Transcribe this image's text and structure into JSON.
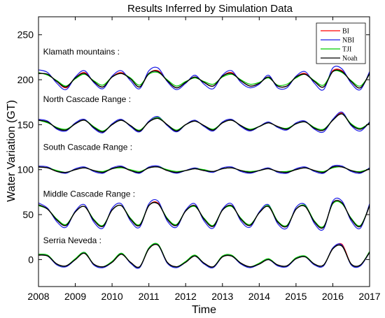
{
  "chart_data": {
    "type": "line",
    "title": "Results Inferred by Simulation Data",
    "xlabel": "Time",
    "ylabel": "Water Variation (GT)",
    "xlim": [
      2008,
      2017
    ],
    "ylim": [
      -30,
      270
    ],
    "xticks": [
      2008,
      2009,
      2010,
      2011,
      2012,
      2013,
      2014,
      2015,
      2016,
      2017
    ],
    "yticks": [
      0,
      50,
      100,
      150,
      200,
      250
    ],
    "grid": false,
    "legend_position": "top-right",
    "legend": [
      {
        "label": "BI",
        "color": "#ff0000"
      },
      {
        "label": "NBI",
        "color": "#1a1ae6"
      },
      {
        "label": "TJI",
        "color": "#00cc00"
      },
      {
        "label": "Noah",
        "color": "#000000"
      }
    ],
    "annotations": [
      {
        "text": "Klamath mountains :",
        "x": 2008.05,
        "y": 228
      },
      {
        "text": "North Cascade Range :",
        "x": 2008.05,
        "y": 175
      },
      {
        "text": "South Cascade Range :",
        "x": 2008.05,
        "y": 122
      },
      {
        "text": "Middle Cascade Range :",
        "x": 2008.05,
        "y": 70
      },
      {
        "text": "Serria Neveda :",
        "x": 2008.05,
        "y": 18
      }
    ],
    "x": [
      2008.0,
      2008.25,
      2008.5,
      2008.75,
      2009.0,
      2009.25,
      2009.5,
      2009.75,
      2010.0,
      2010.25,
      2010.5,
      2010.75,
      2011.0,
      2011.25,
      2011.5,
      2011.75,
      2012.0,
      2012.25,
      2012.5,
      2012.75,
      2013.0,
      2013.25,
      2013.5,
      2013.75,
      2014.0,
      2014.25,
      2014.5,
      2014.75,
      2015.0,
      2015.25,
      2015.5,
      2015.75,
      2016.0,
      2016.25,
      2016.5,
      2016.75,
      2017.0
    ],
    "regions": [
      {
        "name": "Klamath mountains",
        "series": [
          {
            "name": "BI",
            "values": [
              207,
              206,
              198,
              191,
              202,
              208,
              198,
              192,
              203,
              208,
              201,
              192,
              207,
              210,
              199,
              191,
              197,
              203,
              197,
              193,
              204,
              208,
              199,
              193,
              196,
              203,
              193,
              193,
              203,
              207,
              198,
              192,
              210,
              210,
              198,
              191,
              207
            ]
          },
          {
            "name": "NBI",
            "values": [
              211,
              208,
              196,
              189,
              203,
              210,
              197,
              190,
              204,
              210,
              199,
              190,
              210,
              213,
              198,
              189,
              196,
              205,
              195,
              190,
              205,
              210,
              197,
              191,
              195,
              205,
              191,
              191,
              204,
              209,
              196,
              189,
              213,
              212,
              196,
              189,
              209
            ]
          },
          {
            "name": "TJI",
            "values": [
              208,
              205,
              199,
              193,
              201,
              206,
              199,
              194,
              203,
              207,
              202,
              194,
              206,
              208,
              200,
              193,
              198,
              202,
              198,
              195,
              203,
              206,
              200,
              195,
              197,
              202,
              194,
              195,
              202,
              206,
              199,
              194,
              209,
              208,
              199,
              193,
              206
            ]
          },
          {
            "name": "Noah",
            "values": [
              207,
              206,
              198,
              192,
              202,
              207,
              198,
              192,
              203,
              207,
              201,
              192,
              207,
              209,
              199,
              191,
              197,
              203,
              197,
              193,
              204,
              207,
              199,
              193,
              196,
              203,
              193,
              193,
              203,
              206,
              198,
              192,
              209,
              209,
              198,
              191,
              207
            ]
          }
        ]
      },
      {
        "name": "North Cascade Range",
        "series": [
          {
            "name": "BI",
            "values": [
              155,
              153,
              146,
              144,
              151,
              155,
              147,
              142,
              150,
              155,
              149,
              143,
              153,
              158,
              150,
              143,
              150,
              154,
              149,
              144,
              152,
              155,
              149,
              144,
              148,
              152,
              148,
              145,
              151,
              153,
              146,
              144,
              155,
              163,
              150,
              145,
              152
            ]
          },
          {
            "name": "NBI",
            "values": [
              156,
              154,
              145,
              143,
              152,
              156,
              146,
              141,
              151,
              156,
              148,
              142,
              154,
              159,
              149,
              142,
              150,
              155,
              148,
              143,
              153,
              156,
              148,
              143,
              148,
              153,
              147,
              144,
              152,
              154,
              145,
              142,
              156,
              164,
              149,
              143,
              153
            ]
          },
          {
            "name": "TJI",
            "values": [
              155,
              152,
              147,
              145,
              151,
              155,
              148,
              143,
              150,
              155,
              149,
              144,
              153,
              158,
              150,
              144,
              150,
              154,
              149,
              145,
              152,
              155,
              149,
              145,
              148,
              152,
              148,
              146,
              151,
              153,
              147,
              145,
              155,
              162,
              151,
              146,
              152
            ]
          },
          {
            "name": "Noah",
            "values": [
              155,
              153,
              146,
              144,
              151,
              155,
              147,
              142,
              150,
              155,
              149,
              143,
              153,
              157,
              150,
              143,
              150,
              154,
              149,
              144,
              152,
              155,
              149,
              144,
              148,
              152,
              148,
              145,
              151,
              153,
              146,
              144,
              155,
              162,
              150,
              145,
              152
            ]
          }
        ]
      },
      {
        "name": "South Cascade Range",
        "series": [
          {
            "name": "BI",
            "values": [
              103,
              102,
              98,
              97,
              100,
              102,
              99,
              97,
              101,
              103,
              99,
              97,
              102,
              103,
              99,
              97,
              99,
              101,
              99,
              98,
              101,
              102,
              99,
              97,
              99,
              101,
              98,
              97,
              100,
              102,
              99,
              97,
              103,
              103,
              99,
              97,
              101
            ]
          },
          {
            "name": "NBI",
            "values": [
              104,
              103,
              98,
              96,
              101,
              103,
              98,
              96,
              102,
              104,
              99,
              96,
              103,
              104,
              99,
              96,
              99,
              102,
              99,
              97,
              102,
              103,
              98,
              96,
              99,
              102,
              97,
              96,
              101,
              103,
              98,
              96,
              104,
              104,
              98,
              96,
              102
            ]
          },
          {
            "name": "TJI",
            "values": [
              103,
              102,
              99,
              97,
              100,
              102,
              99,
              98,
              101,
              102,
              100,
              98,
              102,
              103,
              100,
              98,
              99,
              101,
              100,
              98,
              101,
              102,
              99,
              98,
              99,
              101,
              98,
              98,
              100,
              102,
              99,
              98,
              102,
              103,
              99,
              98,
              101
            ]
          },
          {
            "name": "Noah",
            "values": [
              103,
              102,
              98,
              97,
              100,
              102,
              99,
              97,
              101,
              103,
              99,
              97,
              102,
              103,
              99,
              97,
              99,
              101,
              99,
              98,
              101,
              102,
              99,
              97,
              99,
              101,
              98,
              97,
              100,
              102,
              99,
              97,
              103,
              103,
              99,
              97,
              101
            ]
          }
        ]
      },
      {
        "name": "Middle Cascade Range",
        "series": [
          {
            "name": "BI",
            "values": [
              61,
              56,
              44,
              38,
              53,
              59,
              44,
              37,
              55,
              60,
              45,
              38,
              60,
              63,
              45,
              38,
              54,
              60,
              45,
              37,
              55,
              60,
              45,
              38,
              52,
              59,
              42,
              37,
              56,
              59,
              42,
              36,
              63,
              63,
              45,
              37,
              60
            ]
          },
          {
            "name": "NBI",
            "values": [
              63,
              57,
              42,
              36,
              54,
              61,
              42,
              35,
              57,
              62,
              43,
              36,
              62,
              65,
              43,
              36,
              55,
              62,
              43,
              35,
              56,
              62,
              43,
              36,
              53,
              61,
              40,
              35,
              58,
              61,
              40,
              34,
              65,
              65,
              43,
              35,
              62
            ]
          },
          {
            "name": "TJI",
            "values": [
              60,
              56,
              45,
              39,
              53,
              59,
              45,
              38,
              55,
              60,
              46,
              39,
              60,
              62,
              46,
              39,
              54,
              59,
              46,
              38,
              55,
              59,
              46,
              39,
              52,
              60,
              43,
              38,
              56,
              60,
              43,
              37,
              62,
              62,
              46,
              38,
              60
            ]
          },
          {
            "name": "Noah",
            "values": [
              61,
              56,
              44,
              38,
              53,
              59,
              44,
              37,
              55,
              60,
              45,
              38,
              60,
              62,
              45,
              38,
              54,
              60,
              45,
              37,
              55,
              60,
              45,
              38,
              52,
              59,
              42,
              37,
              56,
              59,
              42,
              36,
              63,
              63,
              45,
              37,
              60
            ]
          }
        ]
      },
      {
        "name": "Serria Neveda",
        "series": [
          {
            "name": "BI",
            "values": [
              5,
              4,
              -5,
              -7,
              0,
              7,
              -5,
              -8,
              -3,
              6,
              -3,
              -8,
              12,
              16,
              -3,
              -8,
              -3,
              4,
              -4,
              -8,
              3,
              4,
              -4,
              -8,
              -5,
              0,
              -6,
              -7,
              1,
              3,
              -5,
              -6,
              12,
              17,
              -5,
              -6,
              8
            ]
          },
          {
            "name": "NBI",
            "values": [
              6,
              4,
              -6,
              -8,
              0,
              8,
              -6,
              -9,
              -3,
              7,
              -4,
              -9,
              13,
              16,
              -4,
              -9,
              -3,
              4,
              -5,
              -9,
              3,
              4,
              -5,
              -9,
              -5,
              0,
              -7,
              -8,
              1,
              3,
              -6,
              -7,
              13,
              16,
              -6,
              -7,
              8
            ]
          },
          {
            "name": "TJI",
            "values": [
              6,
              5,
              -5,
              -7,
              1,
              8,
              -5,
              -8,
              -2,
              7,
              -3,
              -8,
              13,
              17,
              -3,
              -8,
              -2,
              5,
              -4,
              -8,
              4,
              5,
              -4,
              -8,
              -4,
              1,
              -6,
              -7,
              2,
              4,
              -5,
              -6,
              12,
              15,
              -5,
              -6,
              9
            ]
          },
          {
            "name": "Noah",
            "values": [
              5,
              4,
              -5,
              -7,
              0,
              7,
              -5,
              -8,
              -3,
              6,
              -3,
              -8,
              12,
              16,
              -3,
              -8,
              -3,
              4,
              -4,
              -8,
              3,
              4,
              -4,
              -8,
              -5,
              0,
              -6,
              -7,
              1,
              3,
              -5,
              -6,
              12,
              15,
              -5,
              -6,
              8
            ]
          }
        ]
      }
    ]
  }
}
